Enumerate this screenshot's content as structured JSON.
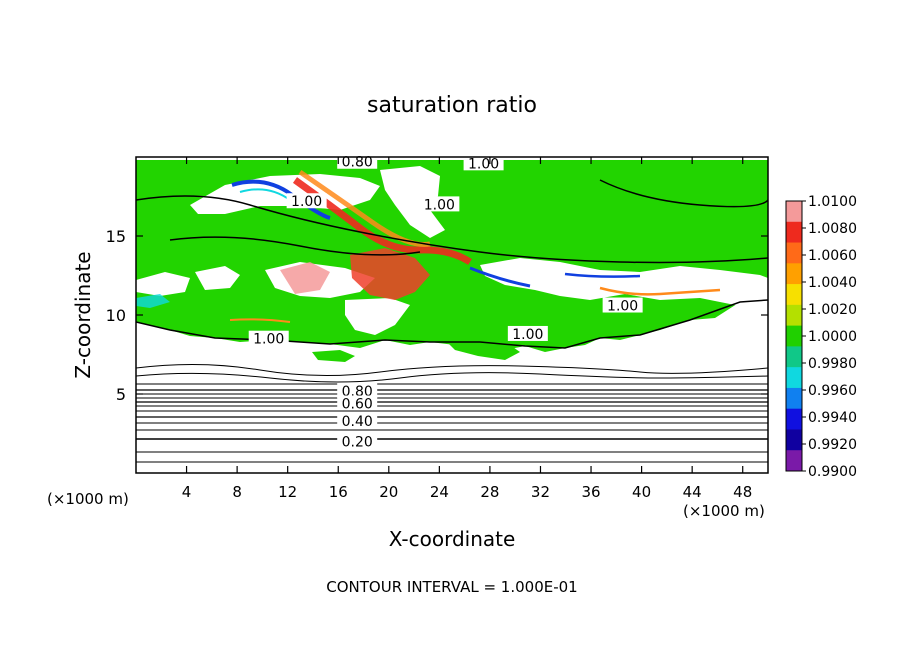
{
  "chart_data": {
    "type": "heatmap",
    "title": "saturation ratio",
    "xlabel": "X-coordinate",
    "ylabel": "Z-coordinate",
    "x_unit_left": "(×1000 m)",
    "x_unit_right": "(×1000 m)",
    "footer": "CONTOUR INTERVAL = 1.000E-01",
    "xlim": [
      0,
      50
    ],
    "ylim": [
      0,
      20
    ],
    "x_ticks": [
      4,
      8,
      12,
      16,
      20,
      24,
      28,
      32,
      36,
      40,
      44,
      48
    ],
    "y_ticks": [
      5,
      10,
      15
    ],
    "colorbar": {
      "range": [
        0.99,
        1.01
      ],
      "labels": [
        "1.0100",
        "1.0080",
        "1.0060",
        "1.0040",
        "1.0020",
        "1.0000",
        "0.9980",
        "0.9960",
        "0.9940",
        "0.9920",
        "0.9900"
      ],
      "colors": [
        "#f49a9a",
        "#ee2a1e",
        "#ff6a18",
        "#ffa000",
        "#f7e000",
        "#b4e000",
        "#20d000",
        "#10c888",
        "#10d8e0",
        "#1080f0",
        "#1010e0",
        "#1000a0",
        "#7a1aa8"
      ]
    },
    "contour_labels": [
      {
        "text": "0.80",
        "x": 17.5,
        "z": 19.7
      },
      {
        "text": "1.00",
        "x": 27.5,
        "z": 19.6
      },
      {
        "text": "1.00",
        "x": 13.5,
        "z": 17.2
      },
      {
        "text": "1.00",
        "x": 24.0,
        "z": 17.0
      },
      {
        "text": "1.00",
        "x": 38.5,
        "z": 10.6
      },
      {
        "text": "1.00",
        "x": 10.5,
        "z": 8.5
      },
      {
        "text": "1.00",
        "x": 31.0,
        "z": 8.8
      },
      {
        "text": "0.80",
        "x": 17.5,
        "z": 5.2
      },
      {
        "text": "0.60",
        "x": 17.5,
        "z": 4.4
      },
      {
        "text": "0.40",
        "x": 17.5,
        "z": 3.3
      },
      {
        "text": "0.20",
        "x": 17.5,
        "z": 2.0
      }
    ]
  }
}
